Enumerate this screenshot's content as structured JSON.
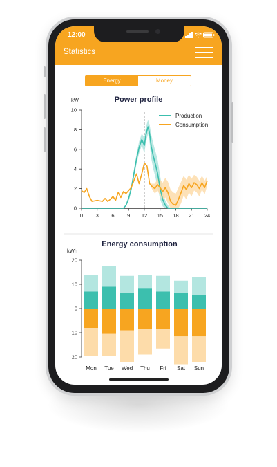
{
  "status_bar": {
    "time": "12:00"
  },
  "app_bar": {
    "title": "Statistics",
    "menu_icon": "hamburger-menu-icon"
  },
  "tabs": [
    {
      "label": "Energy",
      "selected": true
    },
    {
      "label": "Money",
      "selected": false
    }
  ],
  "colors": {
    "accent": "#f7a520",
    "production": "#3cbfae",
    "production_light": "#b3e6e0",
    "consumption": "#f7a520",
    "consumption_light": "#fddcaa"
  },
  "chart_data": [
    {
      "type": "line",
      "title": "Power profile",
      "ylabel": "kW",
      "ylim": [
        0,
        10
      ],
      "xlim": [
        0,
        24
      ],
      "yticks": [
        "0",
        "2",
        "4",
        "6",
        "8",
        "10"
      ],
      "xticks": [
        "0",
        "3",
        "6",
        "9",
        "12",
        "15",
        "18",
        "21",
        "24"
      ],
      "vertical_marker_x": 12,
      "legend": "top-right",
      "series": [
        {
          "name": "Production",
          "x": [
            0,
            6,
            7,
            8,
            8.5,
            9,
            9.5,
            10,
            10.5,
            11,
            11.5,
            12,
            12.3,
            12.7,
            13,
            13.3,
            13.7,
            14,
            14.5,
            15,
            15.5,
            16,
            16.5,
            17,
            18,
            24
          ],
          "y": [
            0,
            0,
            0,
            0,
            0.3,
            1.0,
            2.0,
            3.5,
            5.0,
            6.2,
            7.0,
            6.4,
            7.5,
            8.3,
            7.6,
            6.3,
            5.3,
            4.7,
            3.6,
            2.0,
            0.9,
            0.3,
            0,
            0,
            0,
            0
          ],
          "band_upper": [
            0,
            0,
            0,
            0,
            0.4,
            1.2,
            2.3,
            3.9,
            5.5,
            6.8,
            7.6,
            7.2,
            8.3,
            9.0,
            8.5,
            7.5,
            6.6,
            6.0,
            5.0,
            3.3,
            1.7,
            0.8,
            0.3,
            0,
            0,
            0
          ],
          "band_lower": [
            0,
            0,
            0,
            0,
            0.2,
            0.8,
            1.7,
            3.1,
            4.5,
            5.6,
            6.4,
            5.6,
            6.7,
            7.6,
            6.7,
            5.1,
            4.0,
            3.4,
            2.2,
            0.9,
            0.2,
            0,
            0,
            0,
            0,
            0
          ]
        },
        {
          "name": "Consumption",
          "x": [
            0,
            0.5,
            1,
            1.5,
            2,
            3,
            4,
            4.5,
            5,
            5.5,
            6,
            6.5,
            7,
            7.5,
            8,
            8.5,
            9,
            9.5,
            10,
            10.5,
            11,
            11.5,
            12,
            12.5,
            13,
            13.5,
            14,
            14.5,
            15,
            15.5,
            16,
            16.5,
            17,
            17.5,
            18,
            18.5,
            19,
            19.5,
            20,
            20.5,
            21,
            21.5,
            22,
            22.5,
            23,
            23.5,
            24
          ],
          "y": [
            1.8,
            1.6,
            2.0,
            1.2,
            0.7,
            0.8,
            0.7,
            1.0,
            0.7,
            0.9,
            1.2,
            0.8,
            1.6,
            1.1,
            1.7,
            1.5,
            1.8,
            2.1,
            2.8,
            3.5,
            2.5,
            3.5,
            4.6,
            4.3,
            2.5,
            2.2,
            2.0,
            2.4,
            2.1,
            1.7,
            2.1,
            1.6,
            0.7,
            0.4,
            0.3,
            0.9,
            1.6,
            2.3,
            1.9,
            2.5,
            2.1,
            2.6,
            2.4,
            2.0,
            2.6,
            2.1,
            2.8
          ],
          "band_upper": [
            1.8,
            1.6,
            2.0,
            1.2,
            0.7,
            0.8,
            0.7,
            1.0,
            0.7,
            0.9,
            1.2,
            0.8,
            1.6,
            1.1,
            1.7,
            1.5,
            1.8,
            2.1,
            2.8,
            3.5,
            2.5,
            3.5,
            4.6,
            4.3,
            2.5,
            2.5,
            2.5,
            3.0,
            2.9,
            2.6,
            3.1,
            2.7,
            1.9,
            1.6,
            1.5,
            2.1,
            2.7,
            3.3,
            2.9,
            3.4,
            3.0,
            3.4,
            3.2,
            2.8,
            3.3,
            2.8,
            3.3
          ],
          "band_lower": [
            1.8,
            1.6,
            2.0,
            1.2,
            0.7,
            0.8,
            0.7,
            1.0,
            0.7,
            0.9,
            1.2,
            0.8,
            1.6,
            1.1,
            1.7,
            1.5,
            1.8,
            2.1,
            2.8,
            3.5,
            2.5,
            3.5,
            4.6,
            4.3,
            2.5,
            1.9,
            1.5,
            1.8,
            1.3,
            0.8,
            1.1,
            0.5,
            0,
            0,
            0,
            0,
            0.5,
            1.3,
            0.9,
            1.6,
            1.2,
            1.8,
            1.6,
            1.2,
            1.9,
            1.4,
            2.3
          ]
        }
      ]
    },
    {
      "type": "bar",
      "title": "Energy consumption",
      "ylabel": "kWh",
      "ylim": [
        -20,
        20
      ],
      "yticks": [
        "20",
        "10",
        "0",
        "10",
        "20"
      ],
      "categories": [
        "Mon",
        "Tue",
        "Wed",
        "Thu",
        "Fri",
        "Sat",
        "Sun"
      ],
      "series": [
        {
          "values": [
            7.0,
            9.0,
            6.5,
            8.5,
            7.0,
            6.5,
            5.5
          ],
          "color": "#3cbfae"
        },
        {
          "values": [
            7.0,
            8.5,
            7.0,
            5.5,
            6.5,
            5.0,
            7.5
          ],
          "color": "#b3e6e0"
        },
        {
          "values": [
            8.0,
            10.5,
            9.0,
            8.5,
            8.5,
            11.5,
            11.5
          ],
          "color": "#f7a520"
        },
        {
          "values": [
            11.5,
            9.0,
            13.0,
            10.5,
            8.0,
            11.5,
            10.5
          ],
          "color": "#fddcaa"
        }
      ]
    }
  ]
}
